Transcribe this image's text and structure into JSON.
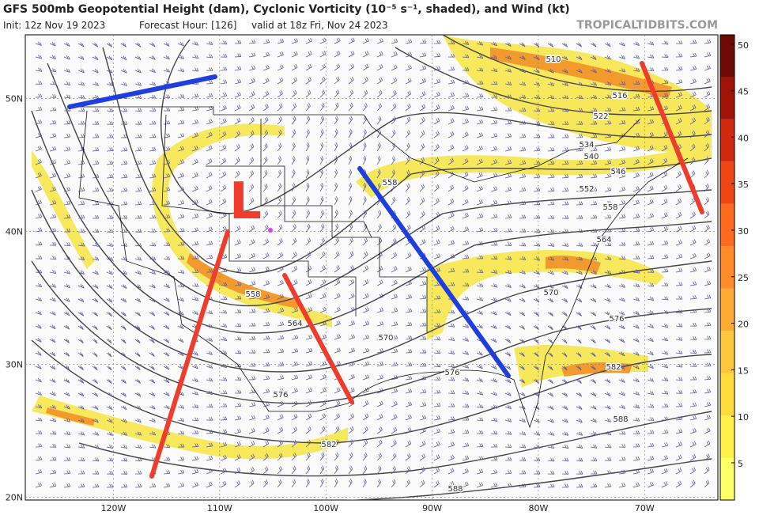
{
  "header": {
    "title": "GFS 500mb Geopotential Height (dam), Cyclonic Vorticity (10⁻⁵ s⁻¹, shaded), and Wind (kt)",
    "init": "Init: 12z Nov 19 2023",
    "forecast_hour": "Forecast Hour: [126]",
    "valid": "valid at 18z Fri, Nov 24 2023",
    "watermark": "TROPICALTIDBITS.COM"
  },
  "map": {
    "lon_range": [
      -128.3,
      -63.1
    ],
    "lat_range": [
      19.8,
      54.8
    ],
    "lon_ticks": [
      {
        "value": -120,
        "label": "120W"
      },
      {
        "value": -110,
        "label": "110W"
      },
      {
        "value": -100,
        "label": "100W"
      },
      {
        "value": -90,
        "label": "90W"
      },
      {
        "value": -80,
        "label": "80W"
      },
      {
        "value": -70,
        "label": "70W"
      }
    ],
    "lat_ticks": [
      {
        "value": 50,
        "label": "50N"
      },
      {
        "value": 40,
        "label": "40N"
      },
      {
        "value": 30,
        "label": "30N"
      },
      {
        "value": 20,
        "label": "20N"
      }
    ],
    "low_label": "L",
    "contour_labels": [
      "510",
      "516",
      "522",
      "534",
      "540",
      "546",
      "552",
      "558",
      "558",
      "564",
      "558",
      "564",
      "570",
      "570",
      "576",
      "576",
      "576",
      "582",
      "582",
      "588",
      "588"
    ]
  },
  "colorbar": {
    "lim": [
      1,
      51
    ],
    "ticks": [
      5,
      10,
      15,
      20,
      25,
      30,
      35,
      40,
      45,
      50
    ],
    "colors": [
      "#ffff66",
      "#fff04a",
      "#ffdc3c",
      "#ffc83c",
      "#ffaa32",
      "#ff8c28",
      "#ff6a1e",
      "#f04616",
      "#d2280f",
      "#a01408",
      "#6e0a05"
    ]
  }
}
